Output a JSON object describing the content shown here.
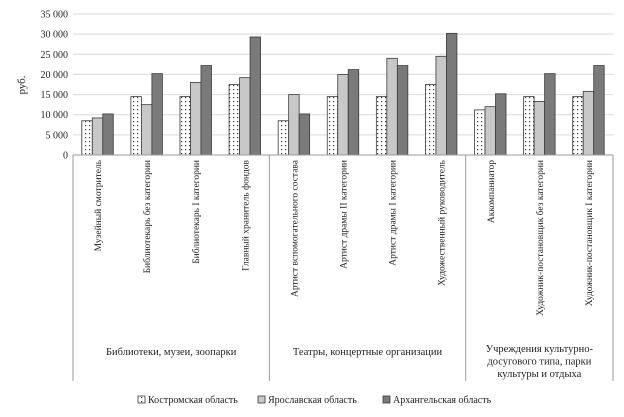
{
  "chart_data": {
    "type": "bar",
    "title": "",
    "xlabel": "",
    "ylabel": "руб.",
    "ylim": [
      0,
      35000
    ],
    "yticks": [
      0,
      5000,
      10000,
      15000,
      20000,
      25000,
      30000,
      35000
    ],
    "ytick_labels": [
      "0",
      "5 000",
      "10 000",
      "15 000",
      "20 000",
      "25 000",
      "30 000",
      "35 000"
    ],
    "groups": [
      {
        "label": "Библиотеки, музеи, зоопарки",
        "count": 4
      },
      {
        "label": "Театры, концертные организации",
        "count": 4
      },
      {
        "label": "Учреждения культурно-досугового типа, парки культуры и отдыха",
        "label_lines": [
          "Учреждения культурно-",
          "досугового типа, парки",
          "культуры и отдыха"
        ],
        "count": 3
      }
    ],
    "categories": [
      "Музейный смотритель",
      "Библиотекарь без категории",
      "Библиотекарь I категории",
      "Главный хранитель фондов",
      "Артист вспомогательного состава",
      "Артист драмы II категории",
      "Артист драмы I категории",
      "Художественный руководитель",
      "Аккомпаниатор",
      "Художник-постановщик без категории",
      "Художник-постановщик I категории"
    ],
    "series": [
      {
        "name": "Костромская область",
        "pattern": "dots",
        "values": [
          8500,
          14500,
          14500,
          17500,
          8500,
          14500,
          14500,
          17500,
          11200,
          14500,
          14500
        ]
      },
      {
        "name": "Ярославская область",
        "pattern": "light",
        "values": [
          9200,
          12500,
          18000,
          19200,
          15000,
          20000,
          24000,
          24500,
          12000,
          13300,
          15800
        ]
      },
      {
        "name": "Архангельская область",
        "pattern": "dark",
        "values": [
          10200,
          20200,
          22200,
          29300,
          10200,
          21200,
          22200,
          30200,
          15200,
          20200,
          22200
        ]
      }
    ],
    "colors": {
      "light": "#c8c8c8",
      "dark": "#7a7a7a",
      "outline": "#3a3a3a",
      "grid": "#d9d9d9",
      "dots": "#333333"
    },
    "grid": true,
    "legend_position": "bottom"
  }
}
